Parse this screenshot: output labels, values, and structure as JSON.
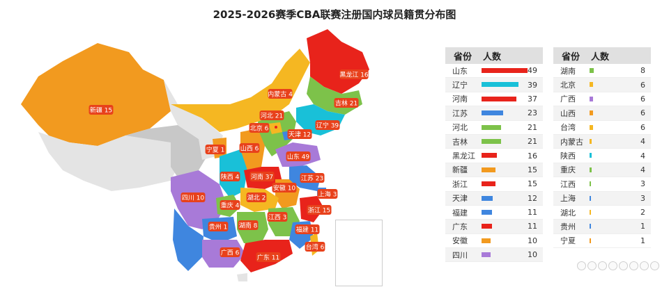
{
  "chart_data": {
    "type": "table",
    "title": "2025-2026赛季CBA联赛注册国内球员籍贯分布图",
    "columns": [
      "省份",
      "人数"
    ],
    "rows": [
      {
        "province": "山东",
        "count": 49,
        "color": "#e8231b"
      },
      {
        "province": "辽宁",
        "count": 39,
        "color": "#19c0d8"
      },
      {
        "province": "河南",
        "count": 37,
        "color": "#e8231b"
      },
      {
        "province": "江苏",
        "count": 23,
        "color": "#3f86df"
      },
      {
        "province": "河北",
        "count": 21,
        "color": "#7dc24a"
      },
      {
        "province": "吉林",
        "count": 21,
        "color": "#7dc24a"
      },
      {
        "province": "黑龙江",
        "count": 16,
        "color": "#e8231b"
      },
      {
        "province": "新疆",
        "count": 15,
        "color": "#f29a1f"
      },
      {
        "province": "浙江",
        "count": 15,
        "color": "#e8231b"
      },
      {
        "province": "天津",
        "count": 12,
        "color": "#3f86df"
      },
      {
        "province": "福建",
        "count": 11,
        "color": "#3f86df"
      },
      {
        "province": "广东",
        "count": 11,
        "color": "#e8231b"
      },
      {
        "province": "安徽",
        "count": 10,
        "color": "#f29a1f"
      },
      {
        "province": "四川",
        "count": 10,
        "color": "#a87ad8"
      },
      {
        "province": "湖南",
        "count": 8,
        "color": "#7dc24a"
      },
      {
        "province": "北京",
        "count": 6,
        "color": "#f5b722"
      },
      {
        "province": "广西",
        "count": 6,
        "color": "#a87ad8"
      },
      {
        "province": "山西",
        "count": 6,
        "color": "#f29a1f"
      },
      {
        "province": "台湾",
        "count": 6,
        "color": "#f5b722"
      },
      {
        "province": "内蒙古",
        "count": 4,
        "color": "#f5b722"
      },
      {
        "province": "陕西",
        "count": 4,
        "color": "#19c0d8"
      },
      {
        "province": "重庆",
        "count": 4,
        "color": "#7dc24a"
      },
      {
        "province": "江西",
        "count": 3,
        "color": "#7dc24a"
      },
      {
        "province": "上海",
        "count": 3,
        "color": "#3f86df"
      },
      {
        "province": "湖北",
        "count": 2,
        "color": "#f5b722"
      },
      {
        "province": "贵州",
        "count": 1,
        "color": "#3f86df"
      },
      {
        "province": "宁夏",
        "count": 1,
        "color": "#f29a1f"
      }
    ],
    "max_count": 49,
    "map_labels": [
      {
        "name": "黑龙江",
        "count": 16
      },
      {
        "name": "内蒙古",
        "count": 4
      },
      {
        "name": "吉林",
        "count": 21
      },
      {
        "name": "新疆",
        "count": 15
      },
      {
        "name": "河北",
        "count": 21
      },
      {
        "name": "北京",
        "count": 6
      },
      {
        "name": "辽宁",
        "count": 39
      },
      {
        "name": "天津",
        "count": 12
      },
      {
        "name": "宁夏",
        "count": 1
      },
      {
        "name": "山西",
        "count": 6
      },
      {
        "name": "山东",
        "count": 49
      },
      {
        "name": "陕西",
        "count": 4
      },
      {
        "name": "河南",
        "count": 37
      },
      {
        "name": "江苏",
        "count": 23
      },
      {
        "name": "安徽",
        "count": 10
      },
      {
        "name": "四川",
        "count": 10
      },
      {
        "name": "湖北",
        "count": 2
      },
      {
        "name": "上海",
        "count": 3
      },
      {
        "name": "重庆",
        "count": 4
      },
      {
        "name": "浙江",
        "count": 15
      },
      {
        "name": "江西",
        "count": 3
      },
      {
        "name": "贵州",
        "count": 1
      },
      {
        "name": "湖南",
        "count": 8
      },
      {
        "name": "福建",
        "count": 11
      },
      {
        "name": "广西",
        "count": 6
      },
      {
        "name": "台湾",
        "count": 6
      },
      {
        "name": "广东",
        "count": 11
      }
    ]
  }
}
